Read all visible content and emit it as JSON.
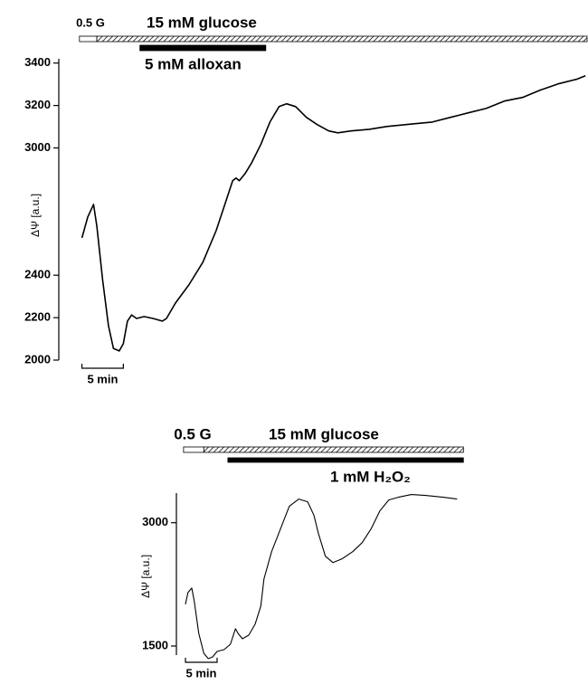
{
  "chart_data": [
    {
      "type": "line",
      "y_label": "ΔΨ [a.u.]",
      "color": "#000000",
      "x": [
        0,
        0.7,
        1.4,
        1.8,
        2.5,
        3.2,
        3.8,
        4.5,
        5.0,
        5.5,
        6.0,
        6.6,
        7.5,
        8.6,
        9.7,
        10.2,
        11.3,
        12.9,
        14.6,
        16.2,
        17.3,
        18.2,
        18.6,
        19.0,
        19.7,
        20.5,
        21.6,
        22.7,
        23.8,
        24.7,
        25.8,
        27.1,
        28.4,
        29.8,
        30.9,
        32.5,
        34.7,
        36.8,
        40.1,
        42.3,
        44.5,
        46.6,
        48.8,
        51.0,
        53.2,
        55.3,
        57.5,
        59.7,
        60.8
      ],
      "values": [
        2576,
        2674,
        2734,
        2630,
        2376,
        2162,
        2055,
        2043,
        2077,
        2184,
        2213,
        2196,
        2205,
        2196,
        2184,
        2196,
        2269,
        2354,
        2461,
        2610,
        2738,
        2845,
        2858,
        2845,
        2879,
        2930,
        3016,
        3122,
        3195,
        3208,
        3195,
        3144,
        3110,
        3080,
        3071,
        3080,
        3088,
        3101,
        3114,
        3122,
        3144,
        3165,
        3186,
        3221,
        3238,
        3272,
        3302,
        3323,
        3340
      ],
      "xlim": [
        -0.5,
        61
      ],
      "ylim": [
        2000,
        3420
      ],
      "yticks": [
        2000,
        2200,
        2400,
        3000,
        3200,
        3400
      ],
      "scale_bar": {
        "value": 5,
        "label": "5 min"
      },
      "protocol": [
        {
          "label": "0.5 G",
          "start": -0.3,
          "end": 1.8,
          "style": "open"
        },
        {
          "label": "15 mM glucose",
          "start": 1.8,
          "end": 61,
          "style": "hatched"
        },
        {
          "label": "5 mM alloxan",
          "start": 7.0,
          "end": 22.2,
          "style": "solid"
        }
      ]
    },
    {
      "type": "line",
      "y_label": "ΔΨ [a.u.]",
      "color": "#000000",
      "x": [
        0,
        0.4,
        1.0,
        1.4,
        2.1,
        2.9,
        3.6,
        4.3,
        5.0,
        6.1,
        7.1,
        7.9,
        8.3,
        9.0,
        10.0,
        11.0,
        11.9,
        12.4,
        13.6,
        15.0,
        16.4,
        17.9,
        19.3,
        20.3,
        21.0,
        22.1,
        23.3,
        24.7,
        26.4,
        27.9,
        29.3,
        30.7,
        32.1,
        33.6,
        35.7,
        37.9,
        40.7,
        42.9
      ],
      "values": [
        2007,
        2151,
        2206,
        2040,
        1654,
        1412,
        1346,
        1368,
        1434,
        1456,
        1522,
        1710,
        1654,
        1588,
        1632,
        1765,
        1985,
        2316,
        2647,
        2923,
        3199,
        3287,
        3254,
        3088,
        2868,
        2592,
        2515,
        2559,
        2647,
        2757,
        2923,
        3143,
        3276,
        3309,
        3342,
        3331,
        3309,
        3287
      ],
      "xlim": [
        -0.5,
        45
      ],
      "ylim": [
        1390,
        3360
      ],
      "yticks": [
        1500,
        3000
      ],
      "scale_bar": {
        "value": 5,
        "label": "5 min"
      },
      "protocol": [
        {
          "label": "0.5 G",
          "start": -0.3,
          "end": 2.9,
          "style": "open"
        },
        {
          "label": "15 mM glucose",
          "start": 2.9,
          "end": 43.9,
          "style": "hatched"
        },
        {
          "label": "1 mM H₂O₂",
          "start": 6.7,
          "end": 43.9,
          "style": "solid"
        }
      ]
    }
  ]
}
